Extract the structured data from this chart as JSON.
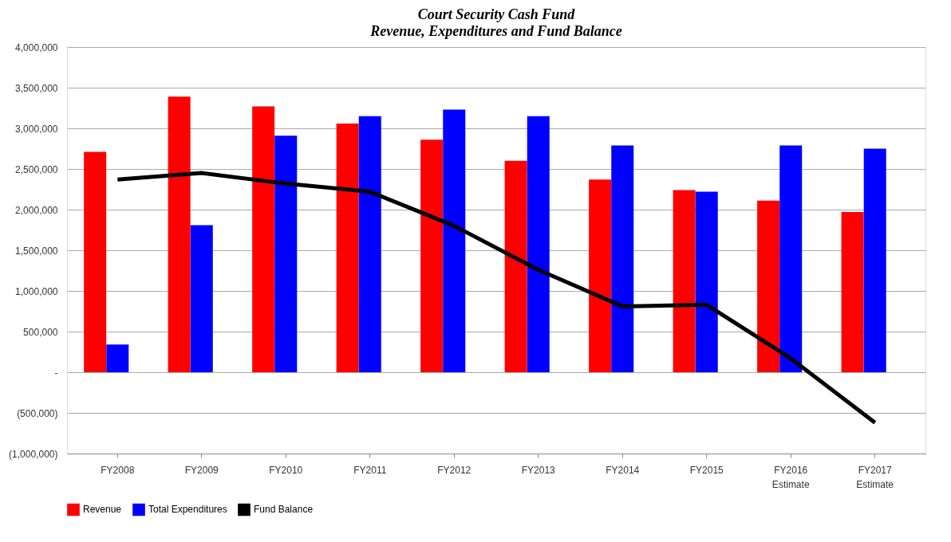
{
  "chart_data": {
    "type": "bar",
    "title": "Court Security Cash Fund",
    "subtitle": "Revenue, Expenditures and Fund Balance",
    "categories": [
      "FY2008",
      "FY2009",
      "FY2010",
      "FY2011",
      "FY2012",
      "FY2013",
      "FY2014",
      "FY2015",
      "FY2016\nEstimate",
      "FY2017\nEstimate"
    ],
    "series": [
      {
        "name": "Revenue",
        "color": "#ff0000",
        "values": [
          2710000,
          3390000,
          3270000,
          3060000,
          2860000,
          2600000,
          2370000,
          2240000,
          2110000,
          1970000
        ]
      },
      {
        "name": "Total Expenditures",
        "color": "#0000ff",
        "values": [
          340000,
          1810000,
          2910000,
          3150000,
          3230000,
          3150000,
          2790000,
          2220000,
          2790000,
          2750000
        ]
      },
      {
        "name": "Fund Balance",
        "type": "line",
        "color": "#000000",
        "values": [
          2370000,
          2450000,
          2320000,
          2220000,
          1800000,
          1260000,
          810000,
          830000,
          170000,
          -620000
        ]
      }
    ],
    "ylim": [
      -1000000,
      4000000
    ],
    "yticks": [
      {
        "value": -1000000,
        "label": "(1,000,000)"
      },
      {
        "value": -500000,
        "label": "(500,000)"
      },
      {
        "value": 0,
        "label": "-"
      },
      {
        "value": 500000,
        "label": "500,000"
      },
      {
        "value": 1000000,
        "label": "1,000,000"
      },
      {
        "value": 1500000,
        "label": "1,500,000"
      },
      {
        "value": 2000000,
        "label": "2,000,000"
      },
      {
        "value": 2500000,
        "label": "2,500,000"
      },
      {
        "value": 3000000,
        "label": "3,000,000"
      },
      {
        "value": 3500000,
        "label": "3,500,000"
      },
      {
        "value": 4000000,
        "label": "4,000,000"
      }
    ],
    "grid": "y",
    "legend": "bottom",
    "marker": "none",
    "line_style": "solid"
  }
}
